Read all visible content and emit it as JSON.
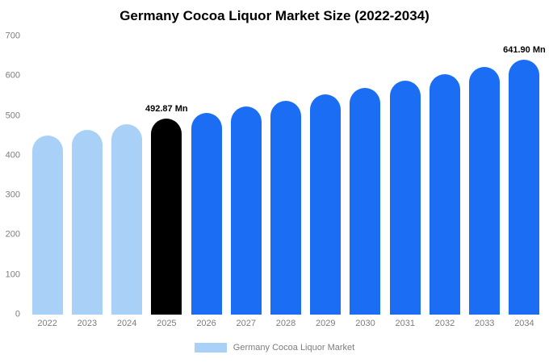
{
  "chart_data": {
    "type": "bar",
    "title": "Germany Cocoa Liquor Market Size (2022-2034)",
    "legend": "Germany Cocoa Liquor Market",
    "categories": [
      "2022",
      "2023",
      "2024",
      "2025",
      "2026",
      "2027",
      "2028",
      "2029",
      "2030",
      "2031",
      "2032",
      "2033",
      "2034"
    ],
    "values": [
      451.2,
      464.7,
      478.6,
      492.87,
      507.6,
      522.7,
      538.3,
      554.3,
      570.8,
      587.8,
      605.3,
      623.3,
      641.9
    ],
    "labels": [
      "",
      "",
      "",
      "492.87 Mn",
      "",
      "",
      "",
      "",
      "",
      "",
      "",
      "",
      "641.90 Mn"
    ],
    "bar_colors": [
      "#a9d1f8",
      "#a9d1f8",
      "#a9d1f8",
      "#000000",
      "#1b6ef3",
      "#1b6ef3",
      "#1b6ef3",
      "#1b6ef3",
      "#1b6ef3",
      "#1b6ef3",
      "#1b6ef3",
      "#1b6ef3",
      "#1b6ef3"
    ],
    "yticks": [
      0,
      100,
      200,
      300,
      400,
      500,
      600,
      700
    ],
    "ylim": [
      0,
      700
    ],
    "grid": false,
    "legend_position": "bottom",
    "colors": {
      "historical": "#a9d1f8",
      "highlight": "#000000",
      "forecast": "#1b6ef3",
      "axis_text": "#7d7d7d"
    }
  }
}
